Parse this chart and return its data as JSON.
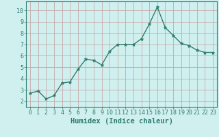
{
  "x": [
    0,
    1,
    2,
    3,
    4,
    5,
    6,
    7,
    8,
    9,
    10,
    11,
    12,
    13,
    14,
    15,
    16,
    17,
    18,
    19,
    20,
    21,
    22,
    23
  ],
  "y": [
    2.7,
    2.9,
    2.2,
    2.5,
    3.6,
    3.7,
    4.8,
    5.7,
    5.6,
    5.2,
    6.4,
    7.0,
    7.0,
    7.0,
    7.5,
    8.8,
    10.3,
    8.5,
    7.8,
    7.1,
    6.9,
    6.5,
    6.3,
    6.3
  ],
  "line_color": "#2e7d6e",
  "marker": "*",
  "marker_size": 3.5,
  "bg_color": "#d0f0f0",
  "grid_color_major": "#c8a8a8",
  "grid_color_minor": "#b8d8d8",
  "xlabel": "Humidex (Indice chaleur)",
  "ylabel": "",
  "xlim": [
    -0.5,
    23.5
  ],
  "ylim": [
    1.5,
    10.8
  ],
  "yticks": [
    2,
    3,
    4,
    5,
    6,
    7,
    8,
    9,
    10
  ],
  "xticks": [
    0,
    1,
    2,
    3,
    4,
    5,
    6,
    7,
    8,
    9,
    10,
    11,
    12,
    13,
    14,
    15,
    16,
    17,
    18,
    19,
    20,
    21,
    22,
    23
  ],
  "xlabel_fontsize": 7.5,
  "tick_fontsize": 6.0,
  "linewidth": 1.0
}
